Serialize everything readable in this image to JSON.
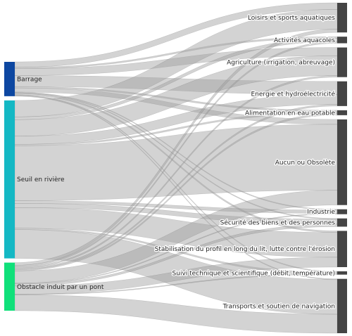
{
  "chart_data": {
    "type": "sankey",
    "sources": [
      {
        "name": "Barrage",
        "color": "#0d47a1",
        "value": 25
      },
      {
        "name": "Seuil en rivière",
        "color": "#14b8c4",
        "value": 115
      },
      {
        "name": "Obstacle induit par un pont",
        "color": "#10e07a",
        "value": 35
      }
    ],
    "targets": [
      {
        "name": "Loisirs et sports aquatiques",
        "value": 18
      },
      {
        "name": "Activités aquacoles",
        "value": 4
      },
      {
        "name": "Agriculture (irrigation, abreuvage)",
        "value": 18
      },
      {
        "name": "Energie et hydroélectricité",
        "value": 15
      },
      {
        "name": "Alimentation en eau potable",
        "value": 3
      },
      {
        "name": "Aucun ou Obsolète",
        "value": 52
      },
      {
        "name": "Industrie",
        "value": 3
      },
      {
        "name": "Sécurité des biens et des personnes",
        "value": 5
      },
      {
        "name": "Stabilisation du profil en long du lit, lutte contre l'érosion",
        "value": 22
      },
      {
        "name": "Suivi technique et scientifique (débit, température)",
        "value": 2
      },
      {
        "name": "Transports et soutien de navigation",
        "value": 33
      }
    ],
    "links": [
      {
        "source": 0,
        "target": 0,
        "value": 4
      },
      {
        "source": 0,
        "target": 1,
        "value": 1
      },
      {
        "source": 0,
        "target": 2,
        "value": 5
      },
      {
        "source": 0,
        "target": 3,
        "value": 8
      },
      {
        "source": 0,
        "target": 4,
        "value": 1
      },
      {
        "source": 0,
        "target": 5,
        "value": 3
      },
      {
        "source": 0,
        "target": 6,
        "value": 0.5
      },
      {
        "source": 0,
        "target": 7,
        "value": 0.5
      },
      {
        "source": 0,
        "target": 8,
        "value": 1
      },
      {
        "source": 0,
        "target": 9,
        "value": 0.5
      },
      {
        "source": 0,
        "target": 10,
        "value": 0.5
      },
      {
        "source": 1,
        "target": 0,
        "value": 12
      },
      {
        "source": 1,
        "target": 1,
        "value": 2
      },
      {
        "source": 1,
        "target": 2,
        "value": 12
      },
      {
        "source": 1,
        "target": 3,
        "value": 6
      },
      {
        "source": 1,
        "target": 4,
        "value": 1
      },
      {
        "source": 1,
        "target": 5,
        "value": 40
      },
      {
        "source": 1,
        "target": 6,
        "value": 2
      },
      {
        "source": 1,
        "target": 7,
        "value": 3
      },
      {
        "source": 1,
        "target": 8,
        "value": 15
      },
      {
        "source": 1,
        "target": 9,
        "value": 1
      },
      {
        "source": 1,
        "target": 10,
        "value": 21
      },
      {
        "source": 2,
        "target": 0,
        "value": 2
      },
      {
        "source": 2,
        "target": 1,
        "value": 1
      },
      {
        "source": 2,
        "target": 2,
        "value": 1
      },
      {
        "source": 2,
        "target": 3,
        "value": 1
      },
      {
        "source": 2,
        "target": 4,
        "value": 1
      },
      {
        "source": 2,
        "target": 5,
        "value": 9
      },
      {
        "source": 2,
        "target": 6,
        "value": 0.5
      },
      {
        "source": 2,
        "target": 7,
        "value": 1.5
      },
      {
        "source": 2,
        "target": 8,
        "value": 6
      },
      {
        "source": 2,
        "target": 9,
        "value": 0.5
      },
      {
        "source": 2,
        "target": 10,
        "value": 11.5
      }
    ],
    "link_color": "#9e9e9e",
    "target_node_color": "#444444"
  }
}
